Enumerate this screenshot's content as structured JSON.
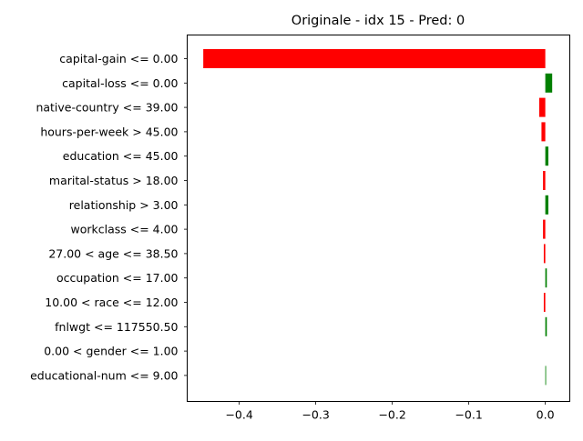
{
  "chart_data": {
    "type": "bar",
    "orientation": "horizontal",
    "title": "Originale - idx 15 - Pred: 0",
    "xlabel": "",
    "ylabel": "",
    "xlim": [
      -0.468,
      0.032
    ],
    "xticks": [
      -0.4,
      -0.3,
      -0.2,
      -0.1,
      0.0
    ],
    "xtick_labels": [
      "−0.4",
      "−0.3",
      "−0.2",
      "−0.1",
      "0.0"
    ],
    "grid": false,
    "colors": {
      "negative": "#ff0000",
      "positive": "#008000"
    },
    "categories": [
      "capital-gain <= 0.00",
      "capital-loss <= 0.00",
      "native-country <= 39.00",
      "hours-per-week > 45.00",
      "education <= 45.00",
      "marital-status > 18.00",
      "relationship > 3.00",
      "workclass <= 4.00",
      "27.00 < age <= 38.50",
      "occupation <= 17.00",
      "10.00 < race <= 12.00",
      "fnlwgt <= 117550.50",
      "0.00 < gender <= 1.00",
      "educational-num <= 9.00"
    ],
    "values": [
      -0.447,
      0.009,
      -0.008,
      -0.005,
      0.004,
      -0.003,
      0.004,
      -0.003,
      -0.002,
      0.002,
      -0.002,
      0.002,
      0.0,
      0.001
    ]
  }
}
